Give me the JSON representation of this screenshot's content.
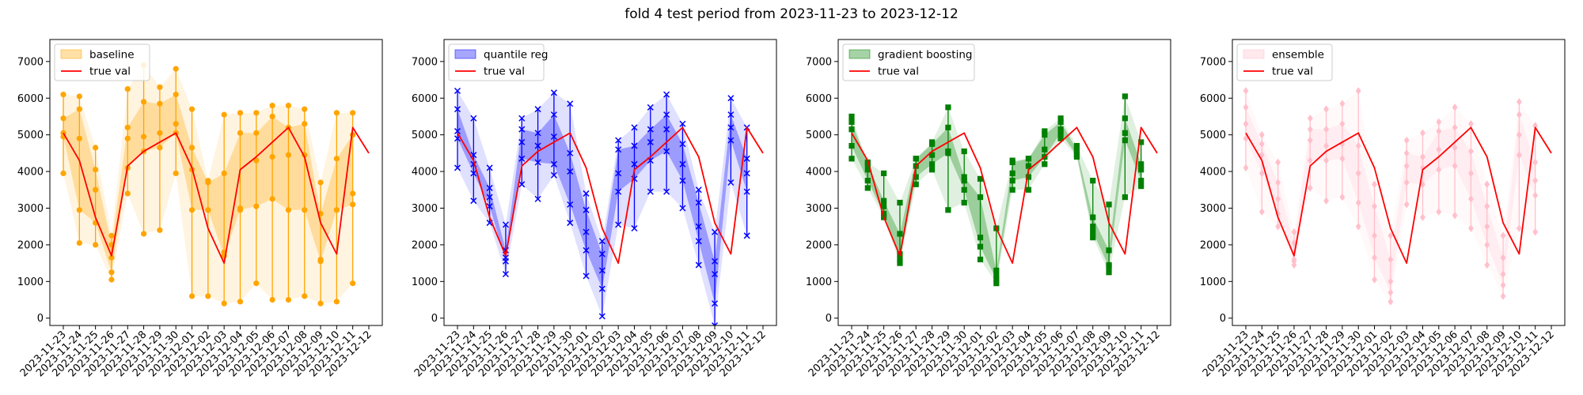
{
  "figure": {
    "title": "fold 4 test period from 2023-11-23 to 2023-12-12"
  },
  "chart_data": [
    {
      "type": "line",
      "subplot_title": "",
      "xlabel": "",
      "ylabel": "",
      "categories": [
        "2023-11-23",
        "2023-11-24",
        "2023-11-25",
        "2023-11-26",
        "2023-11-27",
        "2023-11-28",
        "2023-11-29",
        "2023-11-30",
        "2023-12-01",
        "2023-12-02",
        "2023-12-03",
        "2023-12-04",
        "2023-12-05",
        "2023-12-06",
        "2023-12-07",
        "2023-12-08",
        "2023-12-09",
        "2023-12-10",
        "2023-12-11",
        "2023-12-12"
      ],
      "yticks": [
        0,
        1000,
        2000,
        3000,
        4000,
        5000,
        6000,
        7000
      ],
      "ylim": [
        -200,
        7600
      ],
      "grid": false,
      "legend_position": "top-left",
      "model": {
        "name": "baseline",
        "color": "#ffa500",
        "marker": "circle",
        "band_outer_opacity": 0.12,
        "band_inner_opacity": 0.3,
        "p05": [
          3950,
          2050,
          2000,
          1050,
          3400,
          2300,
          2400,
          3950,
          600,
          600,
          400,
          450,
          950,
          500,
          500,
          600,
          400,
          450,
          950,
          null
        ],
        "p25": [
          4950,
          2950,
          2600,
          1250,
          4100,
          4550,
          4650,
          5050,
          2950,
          2950,
          1700,
          2950,
          3050,
          3250,
          2950,
          2950,
          1550,
          2950,
          3100,
          null
        ],
        "p50": [
          5050,
          4900,
          3500,
          1650,
          4900,
          4950,
          5050,
          5300,
          4050,
          2950,
          1800,
          3000,
          4300,
          4400,
          4450,
          4450,
          1600,
          2950,
          3400,
          null
        ],
        "p75": [
          5450,
          5700,
          4050,
          2000,
          5200,
          5900,
          5850,
          6100,
          4650,
          3700,
          3950,
          5050,
          5050,
          5500,
          5200,
          5300,
          2850,
          4350,
          5000,
          null
        ],
        "p95": [
          6100,
          6050,
          4650,
          2250,
          6250,
          6900,
          6300,
          6800,
          5700,
          3750,
          5550,
          5600,
          5600,
          5800,
          5800,
          5700,
          3700,
          5600,
          5600,
          null
        ]
      },
      "true_val": {
        "name": "true val",
        "color": "#ff0000",
        "values": [
          5050,
          4300,
          2750,
          1700,
          4150,
          4550,
          4800,
          5050,
          4100,
          2450,
          1500,
          4050,
          4400,
          4800,
          5200,
          4400,
          2600,
          1750,
          5200,
          4500
        ]
      }
    },
    {
      "type": "line",
      "subplot_title": "",
      "xlabel": "",
      "ylabel": "",
      "categories": [
        "2023-11-23",
        "2023-11-24",
        "2023-11-25",
        "2023-11-26",
        "2023-11-27",
        "2023-11-28",
        "2023-11-29",
        "2023-11-30",
        "2023-12-01",
        "2023-12-02",
        "2023-12-03",
        "2023-12-04",
        "2023-12-05",
        "2023-12-06",
        "2023-12-07",
        "2023-12-08",
        "2023-12-09",
        "2023-12-10",
        "2023-12-11",
        "2023-12-12"
      ],
      "yticks": [
        0,
        1000,
        2000,
        3000,
        4000,
        5000,
        6000,
        7000
      ],
      "ylim": [
        -200,
        7600
      ],
      "grid": false,
      "legend_position": "top-left",
      "model": {
        "name": "quantile reg",
        "color": "#0000ff",
        "marker": "x",
        "band_outer_opacity": 0.12,
        "band_inner_opacity": 0.3,
        "p05": [
          4100,
          3200,
          2600,
          1200,
          3650,
          3250,
          3900,
          2600,
          1150,
          50,
          2550,
          2450,
          3450,
          3450,
          3000,
          1450,
          -200,
          3700,
          2250,
          null
        ],
        "p25": [
          4900,
          3950,
          3050,
          1550,
          4350,
          4250,
          4200,
          3100,
          1850,
          800,
          3450,
          3800,
          4300,
          4550,
          3750,
          2100,
          400,
          4850,
          3450,
          null
        ],
        "p50": [
          5100,
          4200,
          3300,
          1650,
          4800,
          4700,
          4950,
          4000,
          2350,
          1300,
          3950,
          4200,
          4800,
          5150,
          4200,
          2500,
          1200,
          5200,
          3950,
          null
        ],
        "p75": [
          5700,
          4450,
          3550,
          1850,
          5150,
          5050,
          5550,
          4500,
          2950,
          1750,
          4600,
          4700,
          5150,
          5550,
          4750,
          3150,
          1550,
          5550,
          4350,
          null
        ],
        "p95": [
          6200,
          5450,
          4100,
          2550,
          5450,
          5700,
          6150,
          5850,
          3400,
          2100,
          4850,
          5200,
          5750,
          6100,
          5300,
          3500,
          2350,
          6000,
          5200,
          null
        ]
      },
      "true_val": {
        "name": "true val",
        "color": "#ff0000",
        "values": [
          5050,
          4300,
          2750,
          1700,
          4150,
          4550,
          4800,
          5050,
          4100,
          2450,
          1500,
          4050,
          4400,
          4800,
          5200,
          4400,
          2600,
          1750,
          5200,
          4500
        ]
      }
    },
    {
      "type": "line",
      "subplot_title": "",
      "xlabel": "",
      "ylabel": "",
      "categories": [
        "2023-11-23",
        "2023-11-24",
        "2023-11-25",
        "2023-11-26",
        "2023-11-27",
        "2023-11-28",
        "2023-11-29",
        "2023-11-30",
        "2023-12-01",
        "2023-12-02",
        "2023-12-03",
        "2023-12-04",
        "2023-12-05",
        "2023-12-06",
        "2023-12-07",
        "2023-12-08",
        "2023-12-09",
        "2023-12-10",
        "2023-12-11",
        "2023-12-12"
      ],
      "yticks": [
        0,
        1000,
        2000,
        3000,
        4000,
        5000,
        6000,
        7000
      ],
      "ylim": [
        -200,
        7600
      ],
      "grid": false,
      "legend_position": "top-left",
      "model": {
        "name": "gradient boosting",
        "color": "#008000",
        "marker": "square",
        "band_outer_opacity": 0.12,
        "band_inner_opacity": 0.3,
        "p05": [
          4350,
          3550,
          2750,
          1500,
          3650,
          4050,
          2950,
          3150,
          1600,
          950,
          3500,
          3500,
          4200,
          4900,
          4400,
          2200,
          1250,
          3300,
          3600,
          null
        ],
        "p25": [
          4700,
          3750,
          2850,
          1600,
          3850,
          4200,
          4500,
          3500,
          1950,
          1050,
          3750,
          3850,
          4400,
          5050,
          4450,
          2350,
          1400,
          4850,
          3750,
          null
        ],
        "p50": [
          5150,
          4050,
          3050,
          1750,
          4150,
          4450,
          4550,
          3750,
          2200,
          1150,
          3950,
          4150,
          4600,
          5150,
          4550,
          2500,
          1450,
          5050,
          4050,
          null
        ],
        "p75": [
          5350,
          4200,
          3200,
          2300,
          4350,
          4750,
          5200,
          3850,
          3300,
          1300,
          4250,
          4350,
          5000,
          5350,
          4600,
          2750,
          1850,
          5450,
          4200,
          null
        ],
        "p95": [
          5500,
          4250,
          3950,
          3150,
          4350,
          4800,
          5750,
          4550,
          3800,
          2450,
          4300,
          4350,
          5100,
          5450,
          4700,
          3750,
          3100,
          6050,
          4800,
          null
        ]
      },
      "true_val": {
        "name": "true val",
        "color": "#ff0000",
        "values": [
          5050,
          4300,
          2750,
          1700,
          4150,
          4550,
          4800,
          5050,
          4100,
          2450,
          1500,
          4050,
          4400,
          4800,
          5200,
          4400,
          2600,
          1750,
          5200,
          4500
        ]
      }
    },
    {
      "type": "line",
      "subplot_title": "",
      "xlabel": "",
      "ylabel": "",
      "categories": [
        "2023-11-23",
        "2023-11-24",
        "2023-11-25",
        "2023-11-26",
        "2023-11-27",
        "2023-11-28",
        "2023-11-29",
        "2023-11-30",
        "2023-12-01",
        "2023-12-02",
        "2023-12-03",
        "2023-12-04",
        "2023-12-05",
        "2023-12-06",
        "2023-12-07",
        "2023-12-08",
        "2023-12-09",
        "2023-12-10",
        "2023-12-11",
        "2023-12-12"
      ],
      "yticks": [
        0,
        1000,
        2000,
        3000,
        4000,
        5000,
        6000,
        7000
      ],
      "ylim": [
        -200,
        7600
      ],
      "grid": false,
      "legend_position": "top-left",
      "model": {
        "name": "ensemble",
        "color": "#ffc0cb",
        "marker": "diamond",
        "band_outer_opacity": 0.1,
        "band_inner_opacity": 0.2,
        "p05": [
          4100,
          2900,
          2500,
          1450,
          3550,
          3200,
          3300,
          2500,
          1050,
          450,
          3100,
          2750,
          2900,
          2800,
          2450,
          1450,
          600,
          2450,
          2350,
          null
        ],
        "p25": [
          4900,
          3950,
          2850,
          1550,
          4300,
          4300,
          4350,
          3150,
          1650,
          700,
          3700,
          3650,
          4050,
          4150,
          3250,
          2000,
          900,
          4450,
          3350,
          null
        ],
        "p50": [
          5300,
          4450,
          3250,
          1600,
          4850,
          4700,
          4750,
          3950,
          2250,
          1000,
          4150,
          4100,
          4600,
          4650,
          3950,
          2500,
          1200,
          5000,
          3750,
          null
        ],
        "p75": [
          5750,
          4750,
          3700,
          2050,
          5150,
          5150,
          5300,
          4700,
          3050,
          1600,
          4500,
          4400,
          5100,
          5200,
          4550,
          3050,
          1650,
          5550,
          4250,
          null
        ],
        "p95": [
          6200,
          5000,
          4250,
          2350,
          5450,
          5700,
          5850,
          6200,
          3650,
          2250,
          4850,
          5050,
          5350,
          5750,
          5300,
          3650,
          2250,
          5900,
          5250,
          null
        ]
      },
      "true_val": {
        "name": "true val",
        "color": "#ff0000",
        "values": [
          5050,
          4300,
          2750,
          1700,
          4150,
          4550,
          4800,
          5050,
          4100,
          2450,
          1500,
          4050,
          4400,
          4800,
          5200,
          4400,
          2600,
          1750,
          5200,
          4500
        ]
      }
    }
  ]
}
